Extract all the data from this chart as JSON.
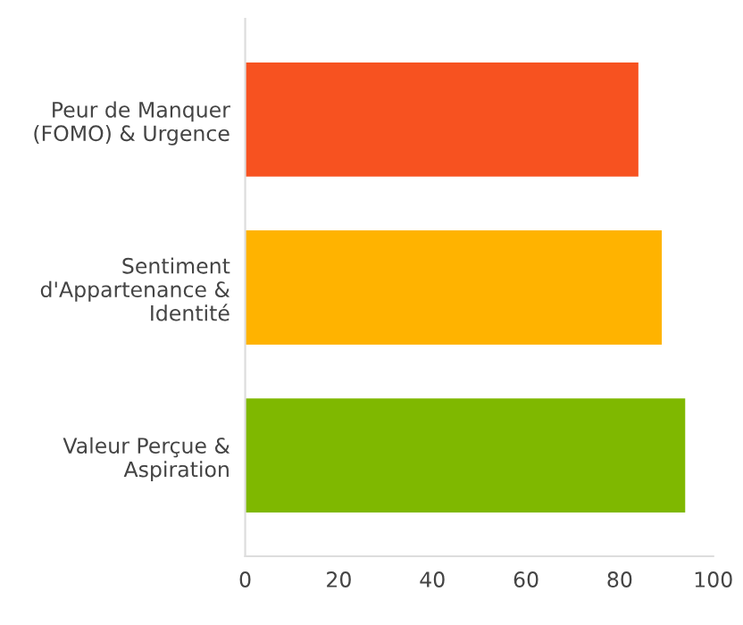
{
  "chart_data": {
    "type": "bar",
    "orientation": "horizontal",
    "categories": [
      "Peur de Manquer\n(FOMO) & Urgence",
      "Sentiment\nd'Appartenance &\nIdentité",
      "Valeur Perçue &\nAspiration"
    ],
    "values": [
      84,
      89,
      94
    ],
    "colors": [
      "#f75220",
      "#ffb300",
      "#7fb800"
    ],
    "xlim": [
      0,
      100
    ],
    "xticks": [
      0,
      20,
      40,
      60,
      80,
      100
    ],
    "grid": false
  }
}
